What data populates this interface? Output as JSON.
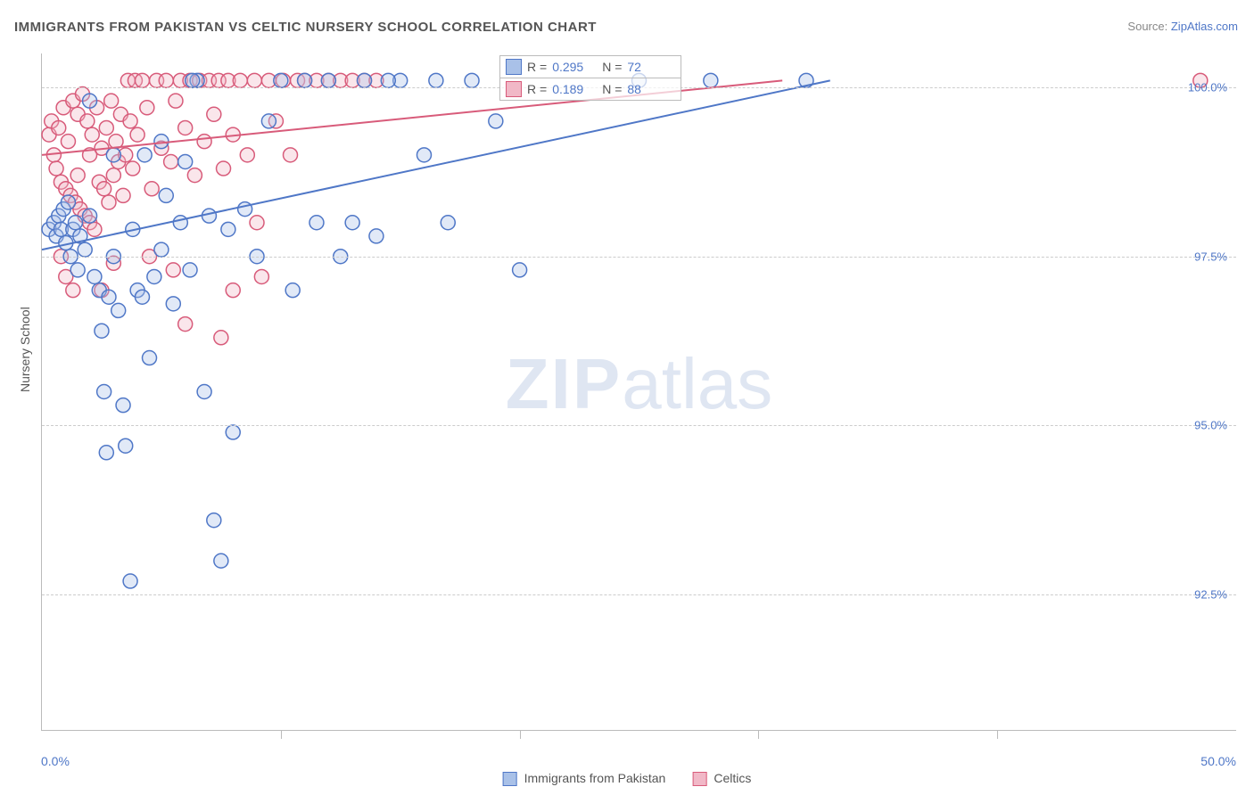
{
  "title": "IMMIGRANTS FROM PAKISTAN VS CELTIC NURSERY SCHOOL CORRELATION CHART",
  "source": {
    "label": "Source:",
    "link": "ZipAtlas.com"
  },
  "ylabel": "Nursery School",
  "watermark": {
    "bold": "ZIP",
    "rest": "atlas"
  },
  "chart": {
    "type": "scatter",
    "xlim": [
      0,
      50
    ],
    "ylim": [
      90.5,
      100.5
    ],
    "xticks": [
      0,
      50
    ],
    "xtick_labels": [
      "0.0%",
      "50.0%"
    ],
    "xtick_minor": [
      10,
      20,
      30,
      40
    ],
    "yticks": [
      92.5,
      95.0,
      97.5,
      100.0
    ],
    "ytick_labels": [
      "92.5%",
      "95.0%",
      "97.5%",
      "100.0%"
    ],
    "grid_color": "#cccccc",
    "axis_color": "#bbbbbb",
    "background": "#ffffff",
    "marker_radius": 8,
    "marker_stroke_width": 1.5,
    "marker_fill_opacity": 0.35,
    "line_width": 2,
    "series": [
      {
        "name": "Immigrants from Pakistan",
        "color_stroke": "#4f77c7",
        "color_fill": "#a9c1e8",
        "R": "0.295",
        "N": "72",
        "trend": {
          "x1": 0,
          "y1": 97.6,
          "x2": 33,
          "y2": 100.1
        },
        "points": [
          [
            0.3,
            97.9
          ],
          [
            0.5,
            98.0
          ],
          [
            0.6,
            97.8
          ],
          [
            0.7,
            98.1
          ],
          [
            0.8,
            97.9
          ],
          [
            0.9,
            98.2
          ],
          [
            1.0,
            97.7
          ],
          [
            1.1,
            98.3
          ],
          [
            1.2,
            97.5
          ],
          [
            1.3,
            97.9
          ],
          [
            1.4,
            98.0
          ],
          [
            1.5,
            97.3
          ],
          [
            1.6,
            97.8
          ],
          [
            1.8,
            97.6
          ],
          [
            2.0,
            98.1
          ],
          [
            2.2,
            97.2
          ],
          [
            2.4,
            97.0
          ],
          [
            2.5,
            96.4
          ],
          [
            2.6,
            95.5
          ],
          [
            2.7,
            94.6
          ],
          [
            2.8,
            96.9
          ],
          [
            3.0,
            97.5
          ],
          [
            3.2,
            96.7
          ],
          [
            3.4,
            95.3
          ],
          [
            3.5,
            94.7
          ],
          [
            3.7,
            92.7
          ],
          [
            3.8,
            97.9
          ],
          [
            4.0,
            97.0
          ],
          [
            4.2,
            96.9
          ],
          [
            4.5,
            96.0
          ],
          [
            4.7,
            97.2
          ],
          [
            5.0,
            97.6
          ],
          [
            5.2,
            98.4
          ],
          [
            5.5,
            96.8
          ],
          [
            5.8,
            98.0
          ],
          [
            6.0,
            98.9
          ],
          [
            6.2,
            97.3
          ],
          [
            6.5,
            100.1
          ],
          [
            6.8,
            95.5
          ],
          [
            7.0,
            98.1
          ],
          [
            7.2,
            93.6
          ],
          [
            7.5,
            93.0
          ],
          [
            7.8,
            97.9
          ],
          [
            8.0,
            94.9
          ],
          [
            8.5,
            98.2
          ],
          [
            9.0,
            97.5
          ],
          [
            9.5,
            99.5
          ],
          [
            10.0,
            100.1
          ],
          [
            10.5,
            97.0
          ],
          [
            11.0,
            100.1
          ],
          [
            11.5,
            98.0
          ],
          [
            12.0,
            100.1
          ],
          [
            12.5,
            97.5
          ],
          [
            13.0,
            98.0
          ],
          [
            13.5,
            100.1
          ],
          [
            14.0,
            97.8
          ],
          [
            15.0,
            100.1
          ],
          [
            16.0,
            99.0
          ],
          [
            17.0,
            98.0
          ],
          [
            18.0,
            100.1
          ],
          [
            19.0,
            99.5
          ],
          [
            20.0,
            97.3
          ],
          [
            14.5,
            100.1
          ],
          [
            16.5,
            100.1
          ],
          [
            25.0,
            100.1
          ],
          [
            28.0,
            100.1
          ],
          [
            32.0,
            100.1
          ],
          [
            6.3,
            100.1
          ],
          [
            5.0,
            99.2
          ],
          [
            4.3,
            99.0
          ],
          [
            3.0,
            99.0
          ],
          [
            2.0,
            99.8
          ]
        ]
      },
      {
        "name": "Celtics",
        "color_stroke": "#d85b7a",
        "color_fill": "#f1b8c7",
        "R": "0.189",
        "N": "88",
        "trend": {
          "x1": 0,
          "y1": 99.0,
          "x2": 31,
          "y2": 100.1
        },
        "points": [
          [
            0.3,
            99.3
          ],
          [
            0.4,
            99.5
          ],
          [
            0.5,
            99.0
          ],
          [
            0.6,
            98.8
          ],
          [
            0.7,
            99.4
          ],
          [
            0.8,
            98.6
          ],
          [
            0.9,
            99.7
          ],
          [
            1.0,
            98.5
          ],
          [
            1.1,
            99.2
          ],
          [
            1.2,
            98.4
          ],
          [
            1.3,
            99.8
          ],
          [
            1.4,
            98.3
          ],
          [
            1.5,
            99.6
          ],
          [
            1.6,
            98.2
          ],
          [
            1.7,
            99.9
          ],
          [
            1.8,
            98.1
          ],
          [
            1.9,
            99.5
          ],
          [
            2.0,
            98.0
          ],
          [
            2.1,
            99.3
          ],
          [
            2.2,
            97.9
          ],
          [
            2.3,
            99.7
          ],
          [
            2.4,
            98.6
          ],
          [
            2.5,
            99.1
          ],
          [
            2.6,
            98.5
          ],
          [
            2.7,
            99.4
          ],
          [
            2.8,
            98.3
          ],
          [
            2.9,
            99.8
          ],
          [
            3.0,
            98.7
          ],
          [
            3.1,
            99.2
          ],
          [
            3.2,
            98.9
          ],
          [
            3.3,
            99.6
          ],
          [
            3.4,
            98.4
          ],
          [
            3.5,
            99.0
          ],
          [
            3.6,
            100.1
          ],
          [
            3.7,
            99.5
          ],
          [
            3.8,
            98.8
          ],
          [
            3.9,
            100.1
          ],
          [
            4.0,
            99.3
          ],
          [
            4.2,
            100.1
          ],
          [
            4.4,
            99.7
          ],
          [
            4.6,
            98.5
          ],
          [
            4.8,
            100.1
          ],
          [
            5.0,
            99.1
          ],
          [
            5.2,
            100.1
          ],
          [
            5.4,
            98.9
          ],
          [
            5.6,
            99.8
          ],
          [
            5.8,
            100.1
          ],
          [
            6.0,
            99.4
          ],
          [
            6.2,
            100.1
          ],
          [
            6.4,
            98.7
          ],
          [
            6.6,
            100.1
          ],
          [
            6.8,
            99.2
          ],
          [
            7.0,
            100.1
          ],
          [
            7.2,
            99.6
          ],
          [
            7.4,
            100.1
          ],
          [
            7.6,
            98.8
          ],
          [
            7.8,
            100.1
          ],
          [
            8.0,
            99.3
          ],
          [
            8.3,
            100.1
          ],
          [
            8.6,
            99.0
          ],
          [
            8.9,
            100.1
          ],
          [
            9.2,
            97.2
          ],
          [
            9.5,
            100.1
          ],
          [
            9.8,
            99.5
          ],
          [
            10.1,
            100.1
          ],
          [
            10.4,
            99.0
          ],
          [
            10.7,
            100.1
          ],
          [
            11.0,
            100.1
          ],
          [
            11.5,
            100.1
          ],
          [
            12.0,
            100.1
          ],
          [
            12.5,
            100.1
          ],
          [
            13.0,
            100.1
          ],
          [
            13.5,
            100.1
          ],
          [
            14.0,
            100.1
          ],
          [
            6.0,
            96.5
          ],
          [
            3.0,
            97.4
          ],
          [
            2.5,
            97.0
          ],
          [
            1.5,
            98.7
          ],
          [
            0.8,
            97.5
          ],
          [
            1.0,
            97.2
          ],
          [
            1.3,
            97.0
          ],
          [
            2.0,
            99.0
          ],
          [
            4.5,
            97.5
          ],
          [
            5.5,
            97.3
          ],
          [
            7.5,
            96.3
          ],
          [
            8.0,
            97.0
          ],
          [
            9.0,
            98.0
          ],
          [
            48.5,
            100.1
          ]
        ]
      }
    ]
  },
  "legend_bottom": [
    {
      "label": "Immigrants from Pakistan",
      "series_idx": 0
    },
    {
      "label": "Celtics",
      "series_idx": 1
    }
  ],
  "legend_top_labels": {
    "R": "R =",
    "N": "N ="
  }
}
